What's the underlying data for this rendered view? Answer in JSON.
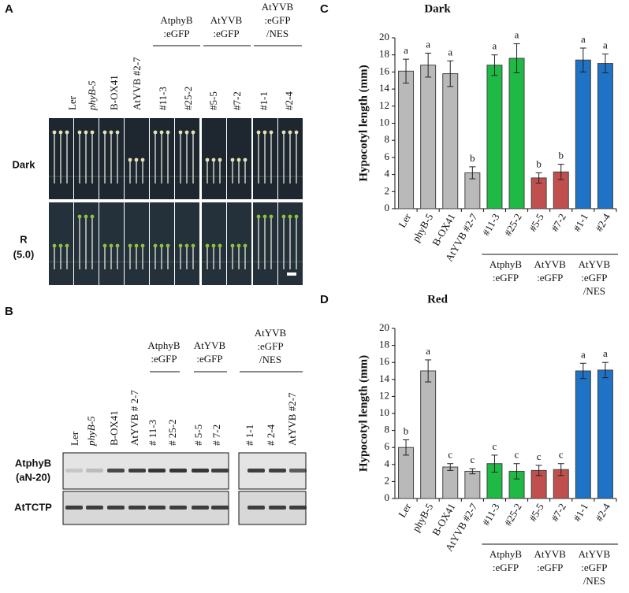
{
  "panel_a": {
    "label": "A",
    "columns": [
      "Ler",
      "phyB-5",
      "B-OX41",
      "AtYVB #2-7",
      "#11-3",
      "#25-2",
      "#5-5",
      "#7-2",
      "#1-1",
      "#2-4"
    ],
    "groups": [
      {
        "lines": [
          "AtphyB",
          ":eGFP"
        ]
      },
      {
        "lines": [
          "AtYVB",
          ":eGFP"
        ]
      },
      {
        "lines": [
          "AtYVB",
          ":eGFP",
          "/NES"
        ]
      }
    ],
    "rows": [
      {
        "lines": [
          "Dark"
        ]
      },
      {
        "lines": [
          "R",
          "(5.0)"
        ]
      }
    ]
  },
  "panel_b": {
    "label": "B",
    "columns": [
      "Ler",
      "phyB-5",
      "B-OX41",
      "AtYVB # 2-7",
      "# 11-3",
      "# 25-2",
      "# 5-5",
      "# 7-2",
      "# 1-1",
      "# 2-4",
      "AtYVB #2-7"
    ],
    "groups": [
      {
        "lines": [
          "AtphyB",
          ":eGFP"
        ]
      },
      {
        "lines": [
          "AtYVB",
          ":eGFP"
        ]
      },
      {
        "lines": [
          "AtYVB",
          ":eGFP",
          "/NES"
        ]
      }
    ],
    "rows": [
      {
        "lines": [
          "AtphyB",
          "(aN-20)"
        ]
      },
      {
        "lines": [
          "AtTCTP"
        ]
      }
    ]
  },
  "chart_data": [
    {
      "type": "bar",
      "panel": "C",
      "title": "Dark",
      "ylabel": "Hypocotyl length (mm)",
      "categories": [
        "Ler",
        "phyB-5",
        "B-OX41",
        "AtYVB #2-7",
        "#11-3",
        "#25-2",
        "#5-5",
        "#7-2",
        "#1-1",
        "#2-4"
      ],
      "values": [
        16.1,
        16.8,
        15.8,
        4.2,
        16.8,
        17.6,
        3.6,
        4.3,
        17.4,
        17.0
      ],
      "errors": [
        1.4,
        1.4,
        1.5,
        0.7,
        1.2,
        1.7,
        0.6,
        0.9,
        1.4,
        1.1
      ],
      "annotations": [
        "a",
        "a",
        "a",
        "b",
        "a",
        "a",
        "b",
        "b",
        "a",
        "a"
      ],
      "colors": [
        "#b9b9b9",
        "#b9b9b9",
        "#b9b9b9",
        "#b9b9b9",
        "#1fba45",
        "#1fba45",
        "#c0504d",
        "#c0504d",
        "#1f72c4",
        "#1f72c4"
      ],
      "groups": [
        {
          "lines": [
            "AtphyB",
            ":eGFP"
          ]
        },
        {
          "lines": [
            "AtYVB",
            ":eGFP"
          ]
        },
        {
          "lines": [
            "AtYVB",
            ":eGFP",
            "/NES"
          ]
        }
      ],
      "ylim": [
        0,
        20
      ],
      "yticks": [
        0,
        2,
        4,
        6,
        8,
        10,
        12,
        14,
        16,
        18,
        20
      ]
    },
    {
      "type": "bar",
      "panel": "D",
      "title": "Red",
      "ylabel": "Hypocotyl length (mm)",
      "categories": [
        "Ler",
        "phyB-5",
        "B-OX41",
        "AtYVB #2-7",
        "#11-3",
        "#25-2",
        "#5-5",
        "#7-2",
        "#1-1",
        "#2-4"
      ],
      "values": [
        6.0,
        15.0,
        3.7,
        3.2,
        4.1,
        3.2,
        3.3,
        3.4,
        15.0,
        15.1
      ],
      "errors": [
        0.9,
        1.3,
        0.4,
        0.3,
        1.0,
        0.9,
        0.6,
        0.7,
        0.9,
        0.9
      ],
      "annotations": [
        "b",
        "a",
        "c",
        "c",
        "c",
        "c",
        "c",
        "c",
        "a",
        "a"
      ],
      "colors": [
        "#b9b9b9",
        "#b9b9b9",
        "#b9b9b9",
        "#b9b9b9",
        "#1fba45",
        "#1fba45",
        "#c0504d",
        "#c0504d",
        "#1f72c4",
        "#1f72c4"
      ],
      "groups": [
        {
          "lines": [
            "AtphyB",
            ":eGFP"
          ]
        },
        {
          "lines": [
            "AtYVB",
            ":eGFP"
          ]
        },
        {
          "lines": [
            "AtYVB",
            ":eGFP",
            "/NES"
          ]
        }
      ],
      "ylim": [
        0,
        20
      ],
      "yticks": [
        0,
        2,
        4,
        6,
        8,
        10,
        12,
        14,
        16,
        18,
        20
      ]
    }
  ]
}
